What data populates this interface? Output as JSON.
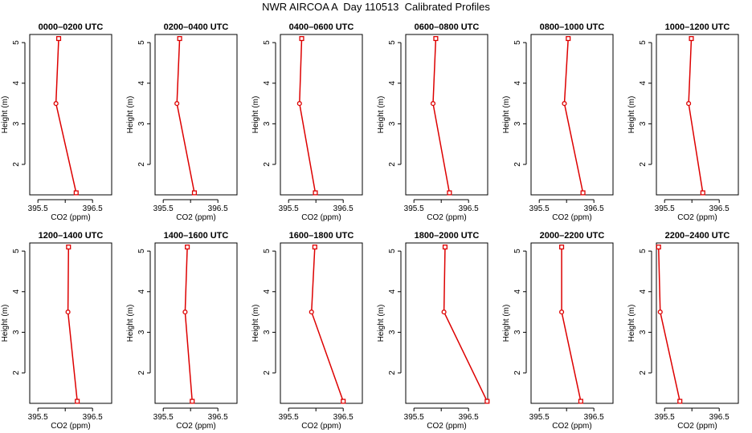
{
  "figure": {
    "title": "NWR AIRCOA A  Day 110513  Calibrated Profiles"
  },
  "style": {
    "line_color": "#dd0000",
    "axis_color": "#000000"
  },
  "chart_data": [
    {
      "type": "line",
      "title": "0000–0200 UTC",
      "xlabel": "CO2 (ppm)",
      "ylabel": "Height (m)",
      "xlim": [
        395.35,
        396.85
      ],
      "ylim": [
        1.25,
        5.2
      ],
      "xticks": [
        395.5,
        396.0,
        396.5
      ],
      "xticklabels": [
        "395.5",
        "",
        "396.5"
      ],
      "yticks": [
        2,
        3,
        4,
        5
      ],
      "x": [
        396.2,
        395.83,
        395.88
      ],
      "y": [
        1.3,
        3.5,
        5.1
      ]
    },
    {
      "type": "line",
      "title": "0200–0400 UTC",
      "xlabel": "CO2 (ppm)",
      "ylabel": "Height (m)",
      "xlim": [
        395.35,
        396.85
      ],
      "ylim": [
        1.25,
        5.2
      ],
      "xticks": [
        395.5,
        396.0,
        396.5
      ],
      "xticklabels": [
        "395.5",
        "",
        "396.5"
      ],
      "yticks": [
        2,
        3,
        4,
        5
      ],
      "x": [
        396.07,
        395.75,
        395.8
      ],
      "y": [
        1.3,
        3.5,
        5.1
      ]
    },
    {
      "type": "line",
      "title": "0400–0600 UTC",
      "xlabel": "CO2 (ppm)",
      "ylabel": "Height (m)",
      "xlim": [
        395.35,
        396.85
      ],
      "ylim": [
        1.25,
        5.2
      ],
      "xticks": [
        395.5,
        396.0,
        396.5
      ],
      "xticklabels": [
        "395.5",
        "",
        "396.5"
      ],
      "yticks": [
        2,
        3,
        4,
        5
      ],
      "x": [
        395.99,
        395.7,
        395.74
      ],
      "y": [
        1.3,
        3.5,
        5.1
      ]
    },
    {
      "type": "line",
      "title": "0600–0800 UTC",
      "xlabel": "CO2 (ppm)",
      "ylabel": "Height (m)",
      "xlim": [
        395.35,
        396.85
      ],
      "ylim": [
        1.25,
        5.2
      ],
      "xticks": [
        395.5,
        396.0,
        396.5
      ],
      "xticklabels": [
        "395.5",
        "",
        "396.5"
      ],
      "yticks": [
        2,
        3,
        4,
        5
      ],
      "x": [
        396.15,
        395.85,
        395.9
      ],
      "y": [
        1.3,
        3.5,
        5.1
      ]
    },
    {
      "type": "line",
      "title": "0800–1000 UTC",
      "xlabel": "CO2 (ppm)",
      "ylabel": "Height (m)",
      "xlim": [
        395.35,
        396.85
      ],
      "ylim": [
        1.25,
        5.2
      ],
      "xticks": [
        395.5,
        396.0,
        396.5
      ],
      "xticklabels": [
        "395.5",
        "",
        "396.5"
      ],
      "yticks": [
        2,
        3,
        4,
        5
      ],
      "x": [
        396.3,
        395.96,
        396.03
      ],
      "y": [
        1.3,
        3.5,
        5.1
      ]
    },
    {
      "type": "line",
      "title": "1000–1200 UTC",
      "xlabel": "CO2 (ppm)",
      "ylabel": "Height (m)",
      "xlim": [
        395.35,
        396.85
      ],
      "ylim": [
        1.25,
        5.2
      ],
      "xticks": [
        395.5,
        396.0,
        396.5
      ],
      "xticklabels": [
        "395.5",
        "",
        "396.5"
      ],
      "yticks": [
        2,
        3,
        4,
        5
      ],
      "x": [
        396.2,
        395.94,
        395.99
      ],
      "y": [
        1.3,
        3.5,
        5.1
      ]
    },
    {
      "type": "line",
      "title": "1200–1400 UTC",
      "xlabel": "CO2 (ppm)",
      "ylabel": "Height (m)",
      "xlim": [
        395.35,
        396.85
      ],
      "ylim": [
        1.25,
        5.2
      ],
      "xticks": [
        395.5,
        396.0,
        396.5
      ],
      "xticklabels": [
        "395.5",
        "",
        "396.5"
      ],
      "yticks": [
        2,
        3,
        4,
        5
      ],
      "x": [
        396.22,
        396.05,
        396.06
      ],
      "y": [
        1.3,
        3.5,
        5.1
      ]
    },
    {
      "type": "line",
      "title": "1400–1600 UTC",
      "xlabel": "CO2 (ppm)",
      "ylabel": "Height (m)",
      "xlim": [
        395.35,
        396.85
      ],
      "ylim": [
        1.25,
        5.2
      ],
      "xticks": [
        395.5,
        396.0,
        396.5
      ],
      "xticklabels": [
        "395.5",
        "",
        "396.5"
      ],
      "yticks": [
        2,
        3,
        4,
        5
      ],
      "x": [
        396.03,
        395.9,
        395.94
      ],
      "y": [
        1.3,
        3.5,
        5.1
      ]
    },
    {
      "type": "line",
      "title": "1600–1800 UTC",
      "xlabel": "CO2 (ppm)",
      "ylabel": "Height (m)",
      "xlim": [
        395.35,
        396.85
      ],
      "ylim": [
        1.25,
        5.2
      ],
      "xticks": [
        395.5,
        396.0,
        396.5
      ],
      "xticklabels": [
        "395.5",
        "",
        "396.5"
      ],
      "yticks": [
        2,
        3,
        4,
        5
      ],
      "x": [
        396.5,
        395.92,
        395.98
      ],
      "y": [
        1.3,
        3.5,
        5.1
      ]
    },
    {
      "type": "line",
      "title": "1800–2000 UTC",
      "xlabel": "CO2 (ppm)",
      "ylabel": "Height (m)",
      "xlim": [
        395.35,
        396.85
      ],
      "ylim": [
        1.25,
        5.2
      ],
      "xticks": [
        395.5,
        396.0,
        396.5
      ],
      "xticklabels": [
        "395.5",
        "",
        "396.5"
      ],
      "yticks": [
        2,
        3,
        4,
        5
      ],
      "x": [
        396.84,
        396.05,
        396.07
      ],
      "y": [
        1.3,
        3.5,
        5.1
      ]
    },
    {
      "type": "line",
      "title": "2000–2200 UTC",
      "xlabel": "CO2 (ppm)",
      "ylabel": "Height (m)",
      "xlim": [
        395.35,
        396.85
      ],
      "ylim": [
        1.25,
        5.2
      ],
      "xticks": [
        395.5,
        396.0,
        396.5
      ],
      "xticklabels": [
        "395.5",
        "",
        "396.5"
      ],
      "yticks": [
        2,
        3,
        4,
        5
      ],
      "x": [
        396.26,
        395.91,
        395.91
      ],
      "y": [
        1.3,
        3.5,
        5.1
      ]
    },
    {
      "type": "line",
      "title": "2200–2400 UTC",
      "xlabel": "CO2 (ppm)",
      "ylabel": "Height (m)",
      "xlim": [
        395.35,
        396.85
      ],
      "ylim": [
        1.25,
        5.2
      ],
      "xticks": [
        395.5,
        396.0,
        396.5
      ],
      "xticklabels": [
        "395.5",
        "",
        "396.5"
      ],
      "yticks": [
        2,
        3,
        4,
        5
      ],
      "x": [
        395.78,
        395.42,
        395.39
      ],
      "y": [
        1.3,
        3.5,
        5.1
      ]
    }
  ]
}
